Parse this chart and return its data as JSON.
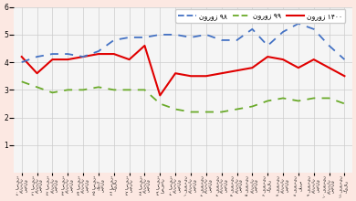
{
  "background_color": "#fce8e2",
  "plot_bg_color": "#f5f5f5",
  "legend": [
    {
      "label": "نوروز ۱۴۰۰",
      "color": "#e00000",
      "style": "solid"
    },
    {
      "label": "نوروز ۹۹",
      "color": "#6aaa2a",
      "style": "dashed"
    },
    {
      "label": "نوروز ۹۸",
      "color": "#4472c4",
      "style": "dashed"
    }
  ],
  "x_labels": [
    "۲۰ اسفند\nمازندران\nشمالی",
    "۲۱ اسفند\nمازندران\nشمالی",
    "۲۲ اسفند\nمازندران\nشمالی",
    "۲۳ اسفند\nمازندران\nشمالی",
    "۲۴ اسفند\nمازندران\nشمالی",
    "۲۵ اسفند\nکودک\nشمالی",
    "۲۶ اسفند\nگیلان",
    "۲۷ اسفند\nسمنان",
    "۲۸ اسفند\nمازندران\nشمالی",
    "۲۹ اسفند\nاصفهان",
    "۳۰ اسفند\nمازندران\nشمالی",
    "۱ فروردین\nمازندران\nشمالی",
    "۲ فروردین\nمازندران\nشمالی",
    "۳ فروردین\nمازندران\nشمالی",
    "۴ فروردین\nمازندران\nشمالی",
    "۵ فروردین\nمازندران\nشمالی",
    "۶ فروردین\nگیلان",
    "۷ فروردین\nمازندران\nشمالی",
    "۸ فروردین\nفارس",
    "۹ فروردین\nمازندران\nشمالی",
    "۱۰ فروردین\nمازندران\nشمالی",
    "۱۱ فروردین\nگیلان"
  ],
  "series_1400": [
    4.2,
    3.6,
    4.1,
    4.1,
    4.2,
    4.3,
    4.3,
    4.1,
    4.6,
    2.8,
    3.6,
    3.5,
    3.5,
    3.6,
    3.7,
    3.8,
    4.2,
    4.1,
    3.8,
    4.1,
    3.8,
    3.5
  ],
  "series_99": [
    3.3,
    3.1,
    2.9,
    3.0,
    3.0,
    3.1,
    3.0,
    3.0,
    3.0,
    2.5,
    2.3,
    2.2,
    2.2,
    2.2,
    2.3,
    2.4,
    2.6,
    2.7,
    2.6,
    2.7,
    2.7,
    2.5
  ],
  "series_98": [
    4.0,
    4.2,
    4.3,
    4.3,
    4.2,
    4.4,
    4.8,
    4.9,
    4.9,
    5.0,
    5.0,
    4.9,
    5.0,
    4.8,
    4.8,
    5.2,
    4.6,
    5.1,
    5.4,
    5.2,
    4.6,
    4.1
  ],
  "ylim": [
    0,
    6
  ],
  "yticks": [
    1,
    2,
    3,
    4,
    5,
    6
  ],
  "grid_color": "#cccccc"
}
